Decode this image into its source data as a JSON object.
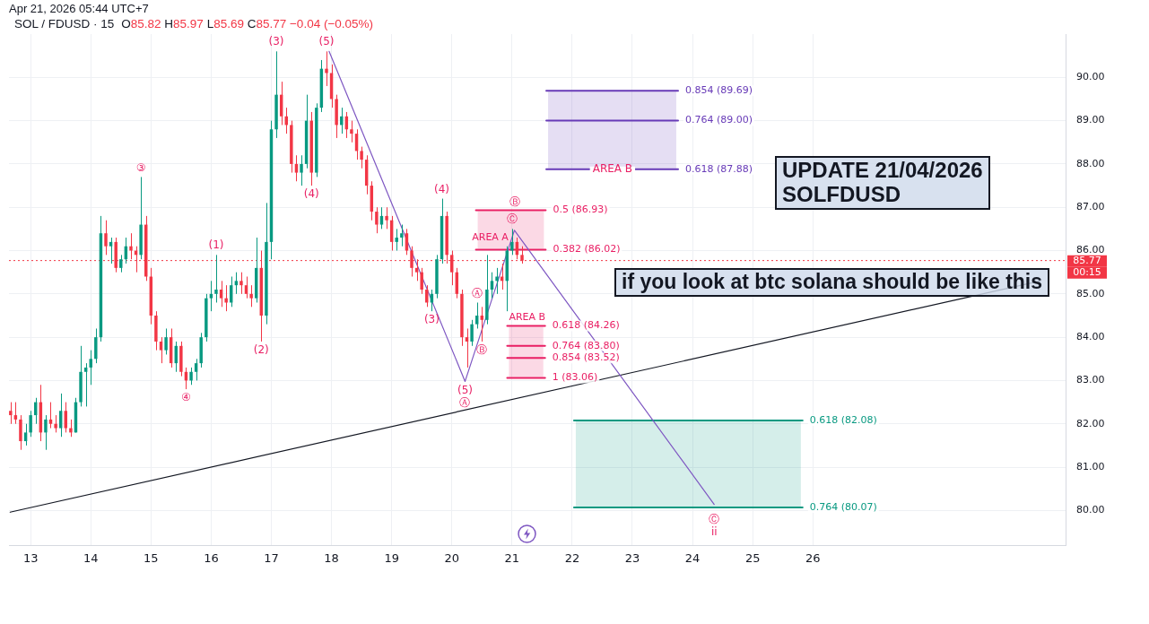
{
  "chart_data": {
    "type": "candlestick",
    "title": "SOL / FDUSD · 15",
    "subtitle": "Apr 21, 2026 05:44 UTC+7",
    "x": [
      12.667,
      12.75,
      12.833,
      12.917,
      13,
      13.083,
      13.167,
      13.25,
      13.333,
      13.417,
      13.5,
      13.583,
      13.667,
      13.75,
      13.833,
      13.917,
      14,
      14.083,
      14.167,
      14.25,
      14.333,
      14.417,
      14.5,
      14.583,
      14.667,
      14.75,
      14.833,
      14.917,
      15,
      15.083,
      15.167,
      15.25,
      15.333,
      15.417,
      15.5,
      15.583,
      15.667,
      15.75,
      15.833,
      15.917,
      16,
      16.083,
      16.167,
      16.25,
      16.333,
      16.417,
      16.5,
      16.583,
      16.667,
      16.75,
      16.833,
      16.917,
      17,
      17.083,
      17.167,
      17.25,
      17.333,
      17.417,
      17.5,
      17.583,
      17.667,
      17.75,
      17.833,
      17.917,
      18,
      18.083,
      18.167,
      18.25,
      18.333,
      18.417,
      18.5,
      18.583,
      18.667,
      18.75,
      18.833,
      18.917,
      19,
      19.083,
      19.167,
      19.25,
      19.333,
      19.417,
      19.5,
      19.583,
      19.667,
      19.75,
      19.833,
      19.917,
      20,
      20.083,
      20.167,
      20.25,
      20.333,
      20.417,
      20.5,
      20.583,
      20.667,
      20.75,
      20.833,
      20.917,
      21,
      21.083,
      21.167
    ],
    "ohlc": [
      [
        82.3,
        82.5,
        82.0,
        82.2
      ],
      [
        82.2,
        82.5,
        82.0,
        82.1
      ],
      [
        82.1,
        82.2,
        81.4,
        81.6
      ],
      [
        81.6,
        82.0,
        81.5,
        81.8
      ],
      [
        81.8,
        82.3,
        81.7,
        82.2
      ],
      [
        82.2,
        82.6,
        82.0,
        82.5
      ],
      [
        82.5,
        82.9,
        81.6,
        81.8
      ],
      [
        81.8,
        82.2,
        81.4,
        82.1
      ],
      [
        82.1,
        82.5,
        81.9,
        82.0
      ],
      [
        82.0,
        82.2,
        81.8,
        81.9
      ],
      [
        81.9,
        82.7,
        81.7,
        82.3
      ],
      [
        82.3,
        82.5,
        81.8,
        81.9
      ],
      [
        81.9,
        82.1,
        81.7,
        81.8
      ],
      [
        81.8,
        82.6,
        81.8,
        82.5
      ],
      [
        82.5,
        83.8,
        82.4,
        83.2
      ],
      [
        83.2,
        83.4,
        82.4,
        83.3
      ],
      [
        83.3,
        83.7,
        82.9,
        83.5
      ],
      [
        83.5,
        84.2,
        83.4,
        84.0
      ],
      [
        84.0,
        86.8,
        83.9,
        86.4
      ],
      [
        86.4,
        86.7,
        85.9,
        86.1
      ],
      [
        86.1,
        86.3,
        85.7,
        86.2
      ],
      [
        86.2,
        86.3,
        85.5,
        85.6
      ],
      [
        85.6,
        85.9,
        85.5,
        85.8
      ],
      [
        85.8,
        86.3,
        85.7,
        86.1
      ],
      [
        86.1,
        86.4,
        85.8,
        86.0
      ],
      [
        86.0,
        86.1,
        85.5,
        85.9
      ],
      [
        85.9,
        87.7,
        85.8,
        86.6
      ],
      [
        86.6,
        86.8,
        85.3,
        85.4
      ],
      [
        85.4,
        85.6,
        84.3,
        84.5
      ],
      [
        84.5,
        84.6,
        83.7,
        83.9
      ],
      [
        83.9,
        84.0,
        83.4,
        83.7
      ],
      [
        83.7,
        84.2,
        83.6,
        84.0
      ],
      [
        84.0,
        84.2,
        83.3,
        83.4
      ],
      [
        83.4,
        83.9,
        83.2,
        83.8
      ],
      [
        83.8,
        83.9,
        83.1,
        83.2
      ],
      [
        83.2,
        83.3,
        82.8,
        83.0
      ],
      [
        83.0,
        83.3,
        82.9,
        83.2
      ],
      [
        83.2,
        83.5,
        83.0,
        83.4
      ],
      [
        83.4,
        84.1,
        83.3,
        84.0
      ],
      [
        84.0,
        85.0,
        83.9,
        84.9
      ],
      [
        84.9,
        85.3,
        84.6,
        85.0
      ],
      [
        85.0,
        85.9,
        84.8,
        85.1
      ],
      [
        85.1,
        85.3,
        84.7,
        84.9
      ],
      [
        84.9,
        85.2,
        84.6,
        84.8
      ],
      [
        84.8,
        85.4,
        84.7,
        85.2
      ],
      [
        85.2,
        85.5,
        85.0,
        85.3
      ],
      [
        85.3,
        85.5,
        85.0,
        85.2
      ],
      [
        85.2,
        85.4,
        84.9,
        85.0
      ],
      [
        85.0,
        85.2,
        84.7,
        84.9
      ],
      [
        84.9,
        86.3,
        84.8,
        85.6
      ],
      [
        85.6,
        86.0,
        83.9,
        84.5
      ],
      [
        84.5,
        87.1,
        84.3,
        86.2
      ],
      [
        86.2,
        89.0,
        85.8,
        88.8
      ],
      [
        88.8,
        90.6,
        88.6,
        89.6
      ],
      [
        89.6,
        89.9,
        88.9,
        89.1
      ],
      [
        89.1,
        89.3,
        88.7,
        88.9
      ],
      [
        88.9,
        89.0,
        87.8,
        88.0
      ],
      [
        88.0,
        88.2,
        87.6,
        87.8
      ],
      [
        87.8,
        88.2,
        87.5,
        88.0
      ],
      [
        88.0,
        89.6,
        87.9,
        89.0
      ],
      [
        89.0,
        89.2,
        87.5,
        87.8
      ],
      [
        87.8,
        89.4,
        87.7,
        89.3
      ],
      [
        89.3,
        90.4,
        89.2,
        90.2
      ],
      [
        90.2,
        90.6,
        89.8,
        90.1
      ],
      [
        90.1,
        90.3,
        89.3,
        89.5
      ],
      [
        89.5,
        89.6,
        88.6,
        88.9
      ],
      [
        88.9,
        89.3,
        88.7,
        89.1
      ],
      [
        89.1,
        89.2,
        88.6,
        88.8
      ],
      [
        88.8,
        89.0,
        88.5,
        88.7
      ],
      [
        88.7,
        88.8,
        88.1,
        88.3
      ],
      [
        88.3,
        88.4,
        87.9,
        88.1
      ],
      [
        88.1,
        88.2,
        87.3,
        87.5
      ],
      [
        87.5,
        87.6,
        86.7,
        86.9
      ],
      [
        86.9,
        87.0,
        86.4,
        86.6
      ],
      [
        86.6,
        87.0,
        86.5,
        86.8
      ],
      [
        86.8,
        87.0,
        86.5,
        86.7
      ],
      [
        86.7,
        86.8,
        86.0,
        86.2
      ],
      [
        86.2,
        86.5,
        86.0,
        86.3
      ],
      [
        86.3,
        86.6,
        86.1,
        86.4
      ],
      [
        86.4,
        86.5,
        85.9,
        86.0
      ],
      [
        86.0,
        86.1,
        85.4,
        85.6
      ],
      [
        85.6,
        85.8,
        85.3,
        85.5
      ],
      [
        85.5,
        85.6,
        85.0,
        85.1
      ],
      [
        85.1,
        85.2,
        84.7,
        84.8
      ],
      [
        84.8,
        85.1,
        84.6,
        85.0
      ],
      [
        85.0,
        85.9,
        84.9,
        85.8
      ],
      [
        85.8,
        87.2,
        85.7,
        86.8
      ],
      [
        86.8,
        86.9,
        85.7,
        85.9
      ],
      [
        85.9,
        86.0,
        85.2,
        85.5
      ],
      [
        85.5,
        85.6,
        84.9,
        85.0
      ],
      [
        85.0,
        85.1,
        83.8,
        84.0
      ],
      [
        84.0,
        84.2,
        83.3,
        83.9
      ],
      [
        83.9,
        84.4,
        83.8,
        84.3
      ],
      [
        84.3,
        84.8,
        84.2,
        84.5
      ],
      [
        84.5,
        84.7,
        83.9,
        84.4
      ],
      [
        84.4,
        85.9,
        84.3,
        85.1
      ],
      [
        85.1,
        85.5,
        84.9,
        85.3
      ],
      [
        85.3,
        85.6,
        85.0,
        85.4
      ],
      [
        85.4,
        85.7,
        85.1,
        85.3
      ],
      [
        85.3,
        86.1,
        84.6,
        86.0
      ],
      [
        86.0,
        86.5,
        85.9,
        86.2
      ],
      [
        86.2,
        86.3,
        85.8,
        85.9
      ],
      [
        85.9,
        86.1,
        85.7,
        85.77
      ]
    ],
    "colors": [
      "#f23645",
      "#f23645",
      "#f23645",
      "#089981",
      "#089981",
      "#089981",
      "#f23645",
      "#089981",
      "#f23645",
      "#f23645",
      "#089981",
      "#f23645",
      "#f23645",
      "#089981",
      "#089981",
      "#089981",
      "#089981",
      "#089981",
      "#089981",
      "#f23645",
      "#089981",
      "#f23645",
      "#089981",
      "#089981",
      "#f23645",
      "#f23645",
      "#089981",
      "#f23645",
      "#f23645",
      "#f23645",
      "#f23645",
      "#089981",
      "#f23645",
      "#089981",
      "#f23645",
      "#f23645",
      "#089981",
      "#089981",
      "#089981",
      "#089981",
      "#089981",
      "#089981",
      "#f23645",
      "#f23645",
      "#089981",
      "#089981",
      "#f23645",
      "#f23645",
      "#f23645",
      "#089981",
      "#f23645",
      "#089981",
      "#089981",
      "#089981",
      "#f23645",
      "#f23645",
      "#f23645",
      "#f23645",
      "#089981",
      "#089981",
      "#f23645",
      "#089981",
      "#089981",
      "#f23645",
      "#f23645",
      "#f23645",
      "#089981",
      "#f23645",
      "#f23645",
      "#f23645",
      "#f23645",
      "#f23645",
      "#f23645",
      "#f23645",
      "#089981",
      "#f23645",
      "#f23645",
      "#089981",
      "#089981",
      "#f23645",
      "#f23645",
      "#f23645",
      "#f23645",
      "#f23645",
      "#089981",
      "#089981",
      "#089981",
      "#f23645",
      "#f23645",
      "#f23645",
      "#f23645",
      "#f23645",
      "#089981",
      "#089981",
      "#f23645",
      "#089981",
      "#089981",
      "#089981",
      "#f23645",
      "#089981",
      "#089981",
      "#f23645",
      "#f23645"
    ],
    "series": [
      {
        "type": "line",
        "color": "#7e57c2",
        "x": [
          17.96,
          20.22,
          21.04,
          24.36
        ],
        "values": [
          90.6,
          82.98,
          86.47,
          80.14
        ]
      },
      {
        "type": "line",
        "color": "#131722",
        "x": [
          12.66,
          29.78
        ],
        "values": [
          79.96,
          85.3
        ]
      },
      {
        "type": "line",
        "name": "0.854 (89.69)",
        "color": "#673ab7",
        "x": [
          21.57,
          23.76
        ],
        "values": [
          89.69,
          89.69
        ]
      },
      {
        "type": "line",
        "name": "0.764 (89.00)",
        "color": "#673ab7",
        "x": [
          21.57,
          23.76
        ],
        "values": [
          89.0,
          89.0
        ],
        "lower": [
          87.88,
          87.88
        ],
        "upper": [
          89.69,
          89.69
        ]
      },
      {
        "type": "line",
        "name": "0.618 (87.88)",
        "color": "#673ab7",
        "x": [
          21.57,
          23.76
        ],
        "values": [
          87.88,
          87.88
        ]
      },
      {
        "type": "line",
        "name": "0.5 (86.93)",
        "color": "#e91e63",
        "x": [
          20.4,
          21.56
        ],
        "values": [
          86.93,
          86.93
        ]
      },
      {
        "type": "line",
        "name": "0.382 (86.02)",
        "color": "#e91e63",
        "x": [
          20.4,
          21.56
        ],
        "values": [
          86.02,
          86.02
        ],
        "lower": [
          86.02,
          86.02
        ],
        "upper": [
          86.93,
          86.93
        ]
      },
      {
        "type": "line",
        "name": "0.618 (84.26)",
        "color": "#e91e63",
        "x": [
          20.92,
          21.55
        ],
        "values": [
          84.26,
          84.26
        ],
        "lower": [
          83.06,
          83.06
        ],
        "upper": [
          84.26,
          84.26
        ]
      },
      {
        "type": "line",
        "name": "0.764 (83.80)",
        "color": "#e91e63",
        "x": [
          20.92,
          21.55
        ],
        "values": [
          83.8,
          83.8
        ]
      },
      {
        "type": "line",
        "name": "0.854 (83.52)",
        "color": "#e91e63",
        "x": [
          20.92,
          21.55
        ],
        "values": [
          83.52,
          83.52
        ]
      },
      {
        "type": "line",
        "name": "1 (83.06)",
        "color": "#e91e63",
        "x": [
          20.92,
          21.55
        ],
        "values": [
          83.06,
          83.06
        ]
      },
      {
        "type": "line",
        "name": "0.618 (82.08)",
        "color": "#089981",
        "x": [
          22.03,
          25.83
        ],
        "values": [
          82.08,
          82.08
        ],
        "lower": [
          80.07,
          80.07
        ],
        "upper": [
          82.08,
          82.08
        ]
      },
      {
        "type": "line",
        "name": "0.764 (80.07)",
        "color": "#089981",
        "x": [
          22.03,
          25.83
        ],
        "values": [
          80.07,
          80.07
        ]
      }
    ],
    "ref_lines": [
      {
        "axis": "y",
        "value": 85.77,
        "label": "85.77",
        "color": "#f23645",
        "line_style": "dotted"
      }
    ],
    "annotations": [
      "O85.82 H85.97 L85.69 C85.77 −0.04 (−0.05%)",
      "UPDATE 21/04/2026\nSOLFDUSD",
      "if you look at btc solana should be like this",
      "00:15",
      "AREA A",
      "AREA B",
      {
        "text": "③",
        "x": 14.833,
        "y": 87.7
      },
      {
        "text": "④",
        "x": 15.583,
        "y": 82.8
      },
      {
        "text": "(1)",
        "x": 16.083,
        "y": 85.9
      },
      {
        "text": "(2)",
        "x": 16.833,
        "y": 83.9
      },
      {
        "text": "(3)",
        "x": 17.083,
        "y": 90.6
      },
      {
        "text": "(4)",
        "x": 17.667,
        "y": 87.5
      },
      {
        "text": "(5)",
        "x": 17.917,
        "y": 90.6
      },
      {
        "text": "(4)",
        "x": 19.833,
        "y": 87.2
      },
      {
        "text": "(3)",
        "x": 19.667,
        "y": 84.6
      },
      {
        "text": "(5)",
        "x": 20.22,
        "y": 82.98
      },
      {
        "text": "Ⓐ",
        "x": 20.22,
        "y": 82.98
      },
      {
        "text": "Ⓐ",
        "x": 20.417,
        "y": 84.8
      },
      {
        "text": "Ⓑ",
        "x": 20.5,
        "y": 83.9
      },
      {
        "text": "Ⓒ",
        "x": 21,
        "y": 86.5
      },
      {
        "text": "Ⓑ",
        "x": 21.04,
        "y": 86.47
      },
      {
        "text": "Ⓒ",
        "x": 24.36,
        "y": 80.14
      },
      {
        "text": "ii",
        "x": 24.36,
        "y": 80.14
      },
      {
        "text": "AREA B",
        "x": 22.67,
        "y": 87.88
      }
    ],
    "xlim": [
      12.64,
      30.2
    ],
    "xticks": [
      13,
      14,
      15,
      16,
      17,
      18,
      19,
      20,
      21,
      22,
      23,
      24,
      25,
      26
    ],
    "ylim": [
      79.2,
      91.0
    ],
    "yticks": [
      {
        "value": 80,
        "label": "80.00"
      },
      {
        "value": 81,
        "label": "81.00"
      },
      {
        "value": 82,
        "label": "82.00"
      },
      {
        "value": 83,
        "label": "83.00"
      },
      {
        "value": 84,
        "label": "84.00"
      },
      {
        "value": 85,
        "label": "85.00"
      },
      {
        "value": 86,
        "label": "86.00"
      },
      {
        "value": 87,
        "label": "87.00"
      },
      {
        "value": 88,
        "label": "88.00"
      },
      {
        "value": 89,
        "label": "89.00"
      },
      {
        "value": 90,
        "label": "90.00"
      }
    ],
    "grid": true
  }
}
